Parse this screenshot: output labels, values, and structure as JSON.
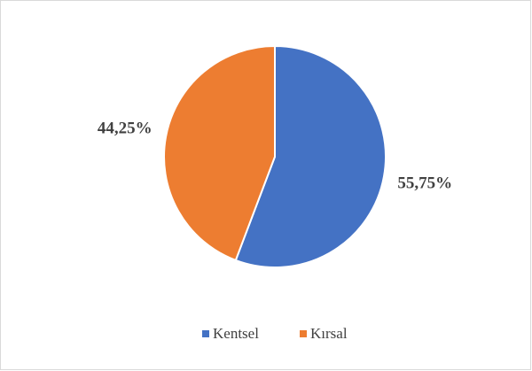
{
  "chart_data": {
    "type": "pie",
    "categories": [
      "Kentsel",
      "Kırsal"
    ],
    "values": [
      55.75,
      44.25
    ],
    "value_labels": [
      "55,75%",
      "44,25%"
    ],
    "colors": [
      "#4472c4",
      "#ed7d31"
    ],
    "legend": "bottom"
  }
}
